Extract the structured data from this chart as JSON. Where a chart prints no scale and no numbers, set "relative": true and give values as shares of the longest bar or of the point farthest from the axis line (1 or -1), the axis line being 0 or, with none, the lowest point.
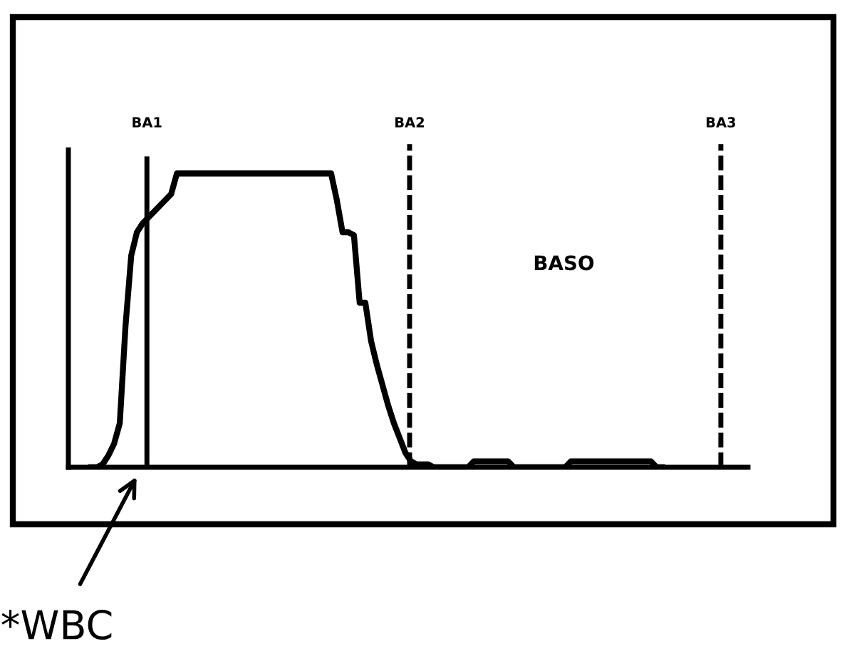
{
  "chart_data": {
    "type": "line",
    "relative": true,
    "categories": [
      null,
      null,
      null,
      null,
      null,
      null,
      null,
      null,
      null,
      null,
      null,
      null,
      null,
      null,
      null,
      null,
      null,
      null,
      null,
      null,
      null,
      null,
      null,
      null,
      null,
      null,
      null,
      null,
      null,
      null,
      null,
      null,
      null,
      null,
      null,
      null,
      null,
      null,
      null,
      null,
      null,
      null,
      null,
      null,
      null,
      null,
      null,
      null,
      null,
      null,
      null,
      null,
      null,
      null,
      null,
      null,
      null,
      null,
      null,
      null,
      null,
      null,
      null,
      null,
      null,
      null,
      null,
      null,
      null,
      null,
      null,
      null,
      null,
      null,
      null,
      null,
      null,
      null,
      null,
      null,
      null,
      null,
      null,
      null,
      null,
      null,
      null,
      null,
      null,
      null,
      null,
      null,
      null,
      null,
      null,
      null,
      null,
      null,
      null,
      null,
      null,
      null,
      null,
      null,
      null,
      null,
      null,
      null,
      null,
      null,
      null,
      null,
      null,
      null,
      null,
      null,
      null,
      null,
      null,
      null
    ],
    "series": [
      {
        "color": "#000000",
        "values": [
          null,
          null,
          null,
          null,
          0,
          0,
          0.01,
          0.04,
          0.08,
          0.15,
          0.48,
          0.72,
          0.8,
          0.83,
          0.85,
          0.87,
          0.89,
          0.91,
          0.93,
          1,
          1,
          1,
          1,
          1,
          1,
          1,
          1,
          1,
          1,
          1,
          1,
          1,
          1,
          1,
          1,
          1,
          1,
          1,
          1,
          1,
          1,
          1,
          1,
          1,
          1,
          1,
          1,
          0.91,
          0.8,
          0.8,
          0.79,
          0.56,
          0.56,
          0.43,
          0.35,
          0.28,
          0.21,
          0.15,
          0.1,
          0.05,
          0.02,
          0.01,
          0.01,
          0.01,
          0,
          0,
          0,
          0,
          0,
          0,
          0,
          0.02,
          0.02,
          0.02,
          0.02,
          0.02,
          0.02,
          0.02,
          0,
          0,
          0,
          0,
          0,
          0,
          0,
          0,
          0,
          0,
          0.02,
          0.02,
          0.02,
          0.02,
          0.02,
          0.02,
          0.02,
          0.02,
          0.02,
          0.02,
          0.02,
          0.02,
          0.02,
          0.02,
          0.02,
          0,
          0,
          null,
          null,
          null,
          null,
          null,
          null,
          null,
          null,
          null,
          null,
          null,
          null,
          null,
          null,
          null
        ]
      }
    ],
    "annotations": [
      "BA1",
      "BA2",
      "BA3",
      "BASO",
      "*WBC"
    ],
    "legend": false,
    "marker": "none",
    "line_style": "solid"
  }
}
